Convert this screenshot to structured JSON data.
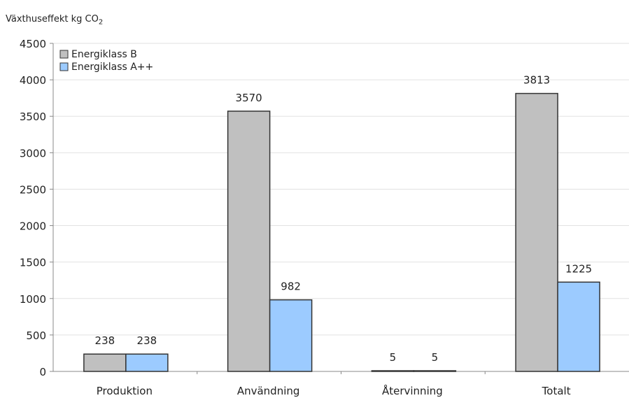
{
  "chart_data": {
    "type": "bar",
    "ylabel_text": "Växthuseffekt kg CO",
    "ylabel_sub": "2",
    "categories": [
      "Produktion",
      "Användning",
      "Återvinning",
      "Totalt"
    ],
    "series": [
      {
        "name": "Energiklass B",
        "color": "#c0c0c0",
        "values": [
          238,
          3570,
          5,
          3813
        ]
      },
      {
        "name": "Energiklass A++",
        "color": "#9ccbff",
        "values": [
          238,
          982,
          5,
          1225
        ]
      }
    ],
    "data_labels": [
      [
        "238",
        "3570",
        "5",
        "3813"
      ],
      [
        "238",
        "982",
        "5",
        "1225"
      ]
    ],
    "ylim": [
      0,
      4500
    ],
    "yticks": [
      0,
      500,
      1000,
      1500,
      2000,
      2500,
      3000,
      3500,
      4000,
      4500
    ],
    "grid": true,
    "legend_position": "top-left"
  }
}
